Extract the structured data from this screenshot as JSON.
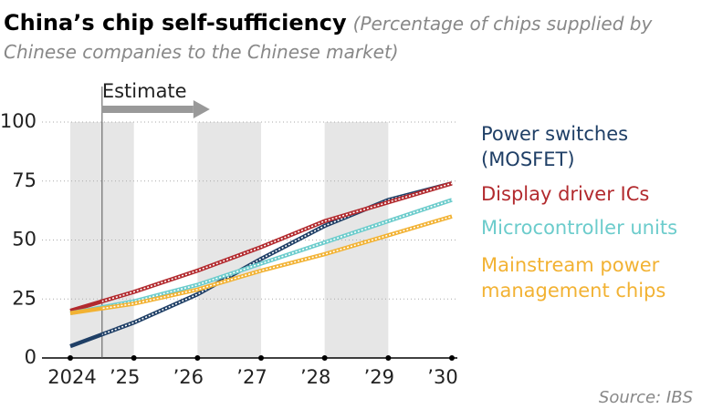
{
  "chart_data": {
    "type": "line",
    "title": "China’s chip self-sufficiency",
    "subtitle": "(Percentage of chips supplied by Chinese companies to the Chinese market)",
    "annotation": "Estimate",
    "source": "Source: IBS",
    "categories": [
      "2024",
      "’25",
      "’26",
      "’27",
      "’28",
      "’29",
      "’30"
    ],
    "series": [
      {
        "name": "Power switches (MOSFET)",
        "color": "#1f3f66",
        "values": [
          5,
          15,
          27,
          42,
          56,
          67,
          74
        ]
      },
      {
        "name": "Display driver ICs",
        "color": "#b22a2e",
        "values": [
          20,
          28,
          37,
          47,
          58,
          66,
          74
        ]
      },
      {
        "name": "Microcontroller units",
        "color": "#6ccccc",
        "values": [
          19,
          24,
          31,
          40,
          49,
          58,
          67
        ]
      },
      {
        "name": "Mainstream power management chips",
        "color": "#f2b233",
        "values": [
          19,
          23,
          29,
          37,
          44,
          52,
          60
        ]
      }
    ],
    "ylim": [
      0,
      100
    ],
    "yticks": [
      0,
      25,
      50,
      75,
      100
    ],
    "grid": true
  }
}
